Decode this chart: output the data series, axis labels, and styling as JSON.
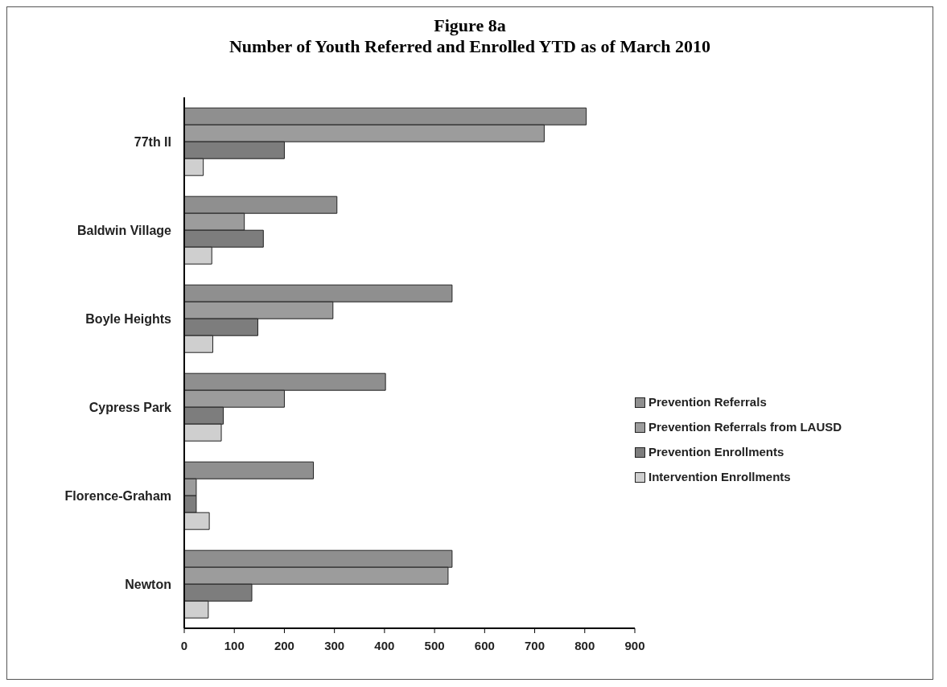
{
  "chart_data": {
    "type": "bar",
    "orientation": "horizontal",
    "title": "Figure 8a",
    "subtitle": "Number of Youth Referred and Enrolled YTD as of March 2010",
    "categories": [
      "77th II",
      "Baldwin Village",
      "Boyle Heights",
      "Cypress Park",
      "Florence-Graham",
      "Newton"
    ],
    "series": [
      {
        "name": "Prevention Referrals",
        "color": "#8f8f8f",
        "values": [
          803,
          305,
          535,
          402,
          258,
          535
        ]
      },
      {
        "name": "Prevention Referrals from LAUSD",
        "color": "#9c9c9c",
        "values": [
          719,
          120,
          297,
          200,
          24,
          527
        ]
      },
      {
        "name": "Prevention Enrollments",
        "color": "#7d7d7d",
        "values": [
          200,
          158,
          147,
          78,
          24,
          135
        ]
      },
      {
        "name": "Intervention Enrollments",
        "color": "#cfcfcf",
        "values": [
          38,
          55,
          57,
          74,
          50,
          48
        ]
      }
    ],
    "xlim": [
      0,
      900
    ],
    "xticks": [
      0,
      100,
      200,
      300,
      400,
      500,
      600,
      700,
      800,
      900
    ],
    "grid": false,
    "legend": "right"
  }
}
